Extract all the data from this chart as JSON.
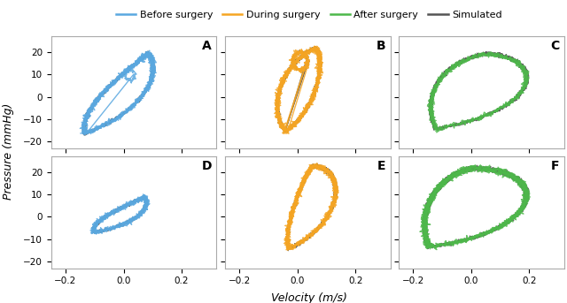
{
  "legend_labels": [
    "Before surgery",
    "During surgery",
    "After surgery",
    "Simulated"
  ],
  "legend_colors": [
    "#5aa8e0",
    "#f5a523",
    "#4db84a",
    "#555555"
  ],
  "panel_labels": [
    "A",
    "B",
    "C",
    "D",
    "E",
    "F"
  ],
  "ylabel": "Pressure (mmHg)",
  "xlabel": "Velocity (m/s)",
  "xlim": [
    -0.25,
    0.32
  ],
  "ylim": [
    -23,
    27
  ],
  "xticks": [
    -0.2,
    0.0,
    0.2
  ],
  "yticks": [
    -20,
    -10,
    0,
    10,
    20
  ],
  "simulated_color": "#555555",
  "background_color": "#ffffff",
  "lw_data": 1.0,
  "lw_sim": 1.0
}
